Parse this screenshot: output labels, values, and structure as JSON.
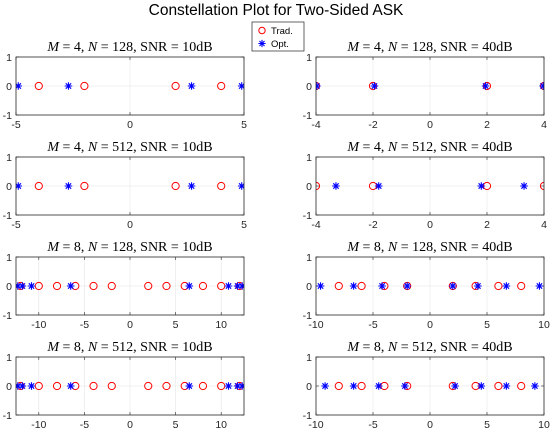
{
  "figure": {
    "title": "Constellation Plot for Two-Sided ASK"
  },
  "legend": {
    "position": "top-center",
    "items": [
      {
        "label": "Trad.",
        "marker": "circle",
        "color": "#ff0000"
      },
      {
        "label": "Opt.",
        "marker": "star",
        "color": "#0000ff"
      }
    ]
  },
  "chart_data": [
    {
      "type": "scatter",
      "title_text": ", N = 128, SNR = 10dB",
      "xlim": [
        -5,
        5
      ],
      "ylim": [
        -1,
        1
      ],
      "xticks": [
        -5,
        0,
        5
      ],
      "yticks": [
        -1,
        0,
        1
      ],
      "grid": true,
      "series": [
        {
          "name": "Trad.",
          "x": [
            -4,
            -2,
            2,
            4
          ],
          "y": [
            0,
            0,
            0,
            0
          ]
        },
        {
          "name": "Opt.",
          "x": [
            -4.9,
            -2.7,
            2.7,
            4.9
          ],
          "y": [
            0,
            0,
            0,
            0
          ]
        }
      ]
    },
    {
      "type": "scatter",
      "title_text": ", N = 128, SNR = 40dB",
      "xlim": [
        -4,
        4
      ],
      "ylim": [
        -1,
        1
      ],
      "xticks": [
        -4,
        -2,
        0,
        2,
        4
      ],
      "yticks": [
        -1,
        0,
        1
      ],
      "grid": true,
      "series": [
        {
          "name": "Trad.",
          "x": [
            -4,
            -2,
            2,
            4
          ],
          "y": [
            0,
            0,
            0,
            0
          ]
        },
        {
          "name": "Opt.",
          "x": [
            -3.97,
            -1.95,
            1.95,
            3.97
          ],
          "y": [
            0,
            0,
            0,
            0
          ]
        }
      ]
    },
    {
      "type": "scatter",
      "title_text": ", N = 512, SNR = 10dB",
      "xlim": [
        -5,
        5
      ],
      "ylim": [
        -1,
        1
      ],
      "xticks": [
        -5,
        0,
        5
      ],
      "yticks": [
        -1,
        0,
        1
      ],
      "grid": true,
      "series": [
        {
          "name": "Trad.",
          "x": [
            -4,
            -2,
            2,
            4
          ],
          "y": [
            0,
            0,
            0,
            0
          ]
        },
        {
          "name": "Opt.",
          "x": [
            -4.9,
            -2.7,
            2.7,
            4.9
          ],
          "y": [
            0,
            0,
            0,
            0
          ]
        }
      ]
    },
    {
      "type": "scatter",
      "title_text": ", N = 512, SNR = 40dB",
      "xlim": [
        -4,
        4
      ],
      "ylim": [
        -1,
        1
      ],
      "xticks": [
        -4,
        -2,
        0,
        2,
        4
      ],
      "yticks": [
        -1,
        0,
        1
      ],
      "grid": true,
      "series": [
        {
          "name": "Trad.",
          "x": [
            -4,
            -2,
            2,
            4
          ],
          "y": [
            0,
            0,
            0,
            0
          ]
        },
        {
          "name": "Opt.",
          "x": [
            -3.3,
            -1.8,
            1.8,
            3.3
          ],
          "y": [
            0,
            0,
            0,
            0
          ]
        }
      ]
    },
    {
      "type": "scatter",
      "title_text": ", N = 128, SNR = 10dB",
      "xlim": [
        -12.5,
        12.5
      ],
      "ylim": [
        -1,
        1
      ],
      "xticks": [
        -10,
        -5,
        0,
        5,
        10
      ],
      "yticks": [
        -1,
        0,
        1
      ],
      "grid": true,
      "series": [
        {
          "name": "Trad.",
          "x": [
            -14,
            -12,
            -10,
            -8,
            -6,
            -4,
            -2,
            2,
            4,
            6,
            8,
            10,
            12,
            14
          ],
          "y": [
            0,
            0,
            0,
            0,
            0,
            0,
            0,
            0,
            0,
            0,
            0,
            0,
            0,
            0
          ]
        },
        {
          "name": "Opt.",
          "x": [
            -12.3,
            -11.8,
            -10.8,
            -6.5,
            6.5,
            10.8,
            11.8,
            12.3
          ],
          "y": [
            0,
            0,
            0,
            0,
            0,
            0,
            0,
            0
          ]
        }
      ]
    },
    {
      "type": "scatter",
      "title_text": ", N = 128, SNR = 40dB",
      "xlim": [
        -10,
        10
      ],
      "ylim": [
        -1,
        1
      ],
      "xticks": [
        -10,
        -5,
        0,
        5,
        10
      ],
      "yticks": [
        -1,
        0,
        1
      ],
      "grid": true,
      "series": [
        {
          "name": "Trad.",
          "x": [
            -8,
            -6,
            -4,
            -2,
            2,
            4,
            6,
            8
          ],
          "y": [
            0,
            0,
            0,
            0,
            0,
            0,
            0,
            0
          ]
        },
        {
          "name": "Opt.",
          "x": [
            -9.6,
            -6.7,
            -4.2,
            -2,
            2,
            4.2,
            6.7,
            9.6
          ],
          "y": [
            0,
            0,
            0,
            0,
            0,
            0,
            0,
            0
          ]
        }
      ]
    },
    {
      "type": "scatter",
      "title_text": ", N = 512, SNR = 10dB",
      "xlim": [
        -12.5,
        12.5
      ],
      "ylim": [
        -1,
        1
      ],
      "xticks": [
        -10,
        -5,
        0,
        5,
        10
      ],
      "yticks": [
        -1,
        0,
        1
      ],
      "grid": true,
      "series": [
        {
          "name": "Trad.",
          "x": [
            -14,
            -12,
            -10,
            -8,
            -6,
            -4,
            -2,
            2,
            4,
            6,
            8,
            10,
            12,
            14
          ],
          "y": [
            0,
            0,
            0,
            0,
            0,
            0,
            0,
            0,
            0,
            0,
            0,
            0,
            0,
            0
          ]
        },
        {
          "name": "Opt.",
          "x": [
            -12.3,
            -11.8,
            -10.8,
            -6.5,
            6.5,
            10.8,
            11.8,
            12.3
          ],
          "y": [
            0,
            0,
            0,
            0,
            0,
            0,
            0,
            0
          ]
        }
      ]
    },
    {
      "type": "scatter",
      "title_text": ", N = 512, SNR = 40dB",
      "xlim": [
        -10,
        10
      ],
      "ylim": [
        -1,
        1
      ],
      "xticks": [
        -10,
        -5,
        0,
        5,
        10
      ],
      "yticks": [
        -1,
        0,
        1
      ],
      "grid": true,
      "series": [
        {
          "name": "Trad.",
          "x": [
            -8,
            -6,
            -4,
            -2,
            2,
            4,
            6,
            8
          ],
          "y": [
            0,
            0,
            0,
            0,
            0,
            0,
            0,
            0
          ]
        },
        {
          "name": "Opt.",
          "x": [
            -9.2,
            -6.7,
            -4.5,
            -2.2,
            2.2,
            4.5,
            6.7,
            9.2
          ],
          "y": [
            0,
            0,
            0,
            0,
            0,
            0,
            0,
            0
          ]
        }
      ]
    }
  ]
}
